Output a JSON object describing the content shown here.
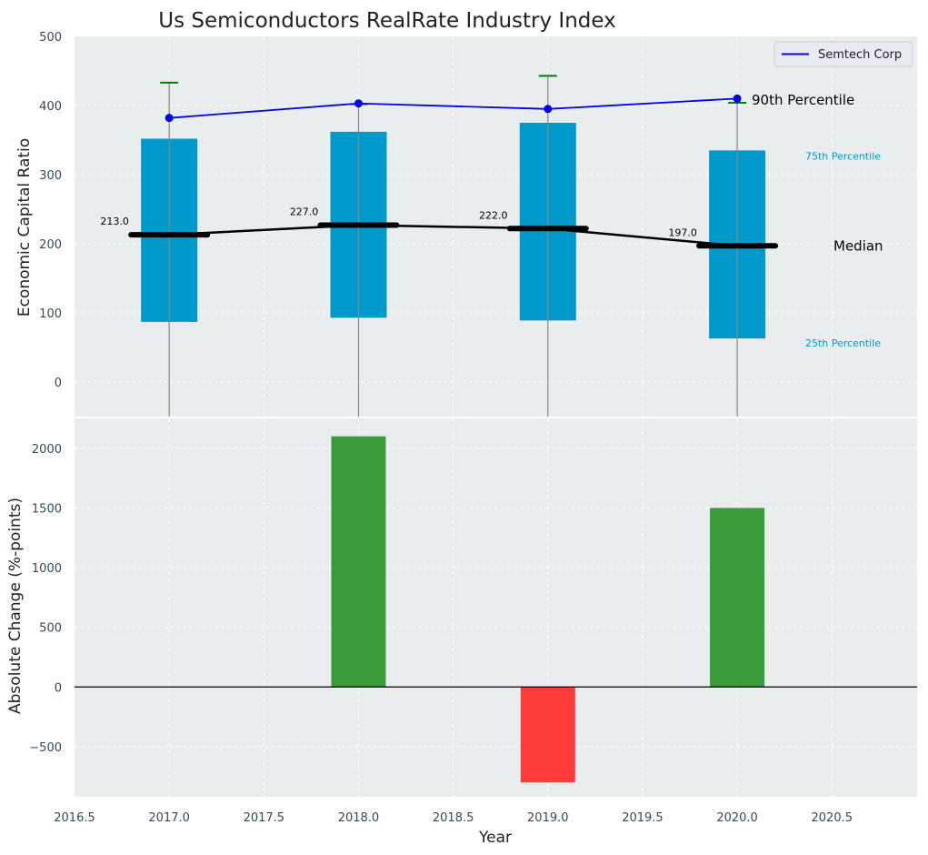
{
  "chart_data": {
    "type": "box_and_bar",
    "title": "Us Semiconductors RealRate Industry Index",
    "years": [
      2017,
      2018,
      2019,
      2020
    ],
    "top_panel": {
      "ylabel": "Economic Capital Ratio",
      "ylim": [
        -50,
        500
      ],
      "yticks": [
        0,
        100,
        200,
        300,
        400,
        500
      ],
      "grid": true,
      "legend_position": "top-right",
      "boxes": [
        {
          "year": 2017,
          "p25": 87,
          "p75": 352,
          "median": 213.0,
          "p90": 433,
          "label": "213.0"
        },
        {
          "year": 2018,
          "p25": 93,
          "p75": 362,
          "median": 227.0,
          "p90": 402,
          "label": "227.0"
        },
        {
          "year": 2019,
          "p25": 89,
          "p75": 375,
          "median": 222.0,
          "p90": 443,
          "label": "222.0"
        },
        {
          "year": 2020,
          "p25": 63,
          "p75": 335,
          "median": 197.0,
          "p90": 404,
          "label": "197.0"
        }
      ],
      "series": [
        {
          "name": "Semtech Corp",
          "values": [
            382,
            403,
            395,
            410
          ],
          "color": "#0000ee"
        }
      ],
      "annotations": {
        "p90": "90th Percentile",
        "p75": "75th Percentile",
        "median": "Median",
        "p25": "25th Percentile"
      },
      "colors": {
        "box": "#0099cc",
        "median": "#000000",
        "whisker": "#888888",
        "cap": "#008000"
      }
    },
    "bottom_panel": {
      "ylabel": "Absolute Change (%-points)",
      "xlabel": "Year",
      "ylim": [
        -920,
        2250
      ],
      "yticks": [
        -500,
        0,
        500,
        1000,
        1500,
        2000
      ],
      "ytick_labels": [
        "−500",
        "0",
        "500",
        "1000",
        "1500",
        "2000"
      ],
      "xlim": [
        2016.5,
        2020.95
      ],
      "xticks": [
        2016.5,
        2017.0,
        2017.5,
        2018.0,
        2018.5,
        2019.0,
        2019.5,
        2020.0,
        2020.5
      ],
      "xtick_labels": [
        "2016.5",
        "2017.0",
        "2017.5",
        "2018.0",
        "2018.5",
        "2019.0",
        "2019.5",
        "2020.0",
        "2020.5"
      ],
      "bars": [
        {
          "year": 2017,
          "value": 0
        },
        {
          "year": 2018,
          "value": 2100
        },
        {
          "year": 2019,
          "value": -800
        },
        {
          "year": 2020,
          "value": 1500
        }
      ],
      "colors": {
        "positive": "#3a9a3a",
        "negative": "#ff3b3b"
      }
    }
  }
}
